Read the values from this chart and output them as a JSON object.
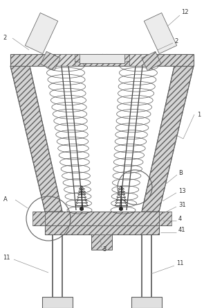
{
  "bg_color": "#ffffff",
  "hatch_fc": "#d4d4d4",
  "line_color": "#606060",
  "dark_color": "#282828",
  "label_color": "#303030",
  "fig_width": 2.95,
  "fig_height": 4.44,
  "dpi": 100
}
